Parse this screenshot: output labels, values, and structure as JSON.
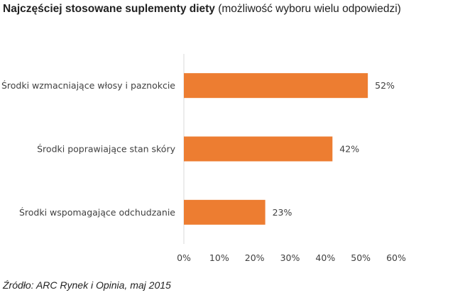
{
  "title": {
    "main": "Najczęściej stosowane suplementy diety",
    "sub": "(możliwość wyboru wielu odpowiedzi)"
  },
  "source": "Źródło: ARC Rynek i Opinia, maj 2015",
  "colors": {
    "bar": "#ED7D31",
    "gridline": "#D9D9D9",
    "text": "#404040"
  },
  "chart_data": {
    "type": "bar",
    "orientation": "horizontal",
    "categories": [
      "Środki wzmacniające włosy i paznokcie",
      "Środki poprawiające stan skóry",
      "Środki wspomagające odchudzanie"
    ],
    "values": [
      52,
      42,
      23
    ],
    "data_labels": [
      "52%",
      "42%",
      "23%"
    ],
    "xlim": [
      0,
      60
    ],
    "x_ticks": [
      "0%",
      "10%",
      "20%",
      "30%",
      "40%",
      "50%",
      "60%"
    ],
    "unit": "%",
    "grid": false,
    "legend": "none"
  }
}
